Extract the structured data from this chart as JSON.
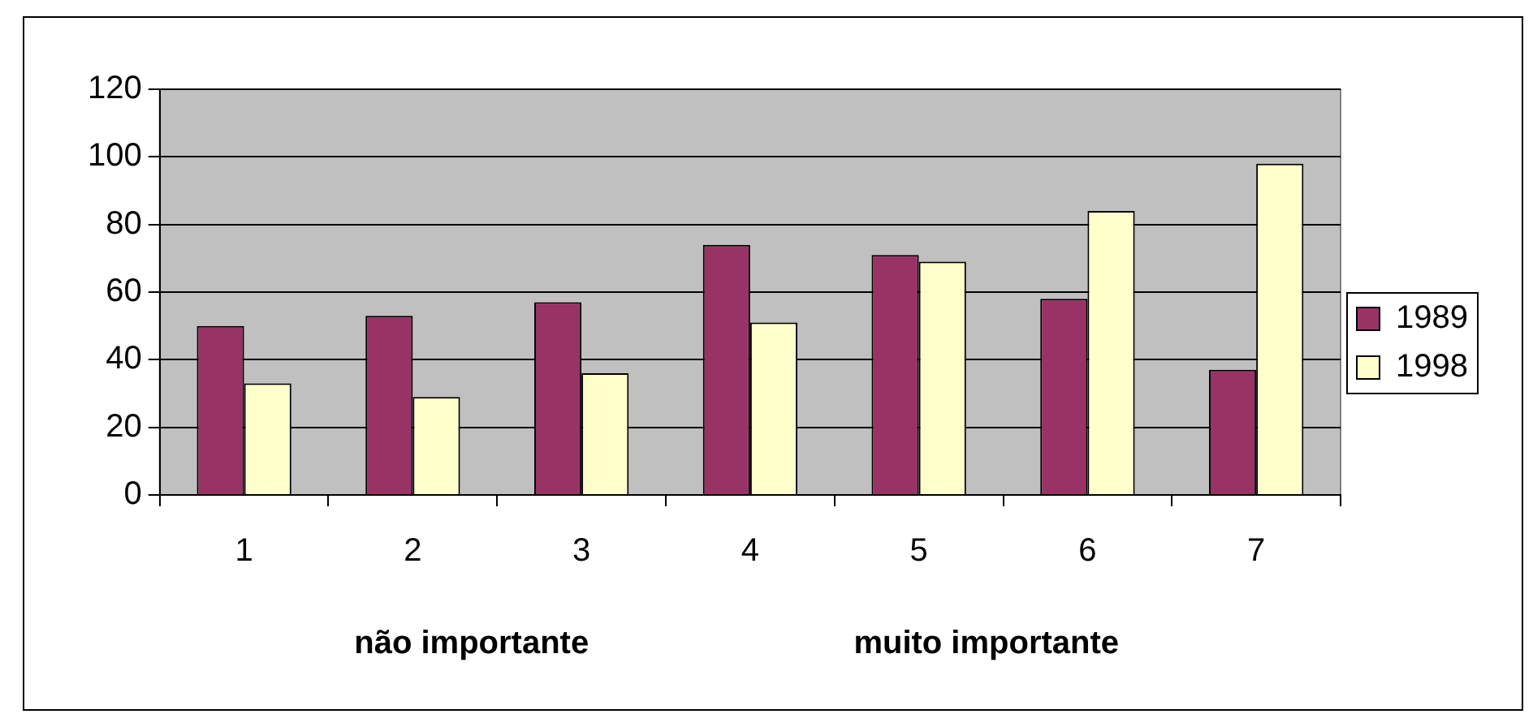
{
  "chart_data": {
    "type": "bar",
    "categories": [
      "1",
      "2",
      "3",
      "4",
      "5",
      "6",
      "7"
    ],
    "series": [
      {
        "name": "1989",
        "color": "#993366",
        "values": [
          50,
          53,
          57,
          74,
          71,
          58,
          37
        ]
      },
      {
        "name": "1998",
        "color": "#ffffcc",
        "values": [
          33,
          29,
          36,
          51,
          69,
          84,
          98
        ]
      }
    ],
    "ylim": [
      0,
      120
    ],
    "yticks": [
      0,
      20,
      40,
      60,
      80,
      100,
      120
    ],
    "grid": "y",
    "legend": "right",
    "annotations": [
      "não importante",
      "muito importante"
    ]
  }
}
